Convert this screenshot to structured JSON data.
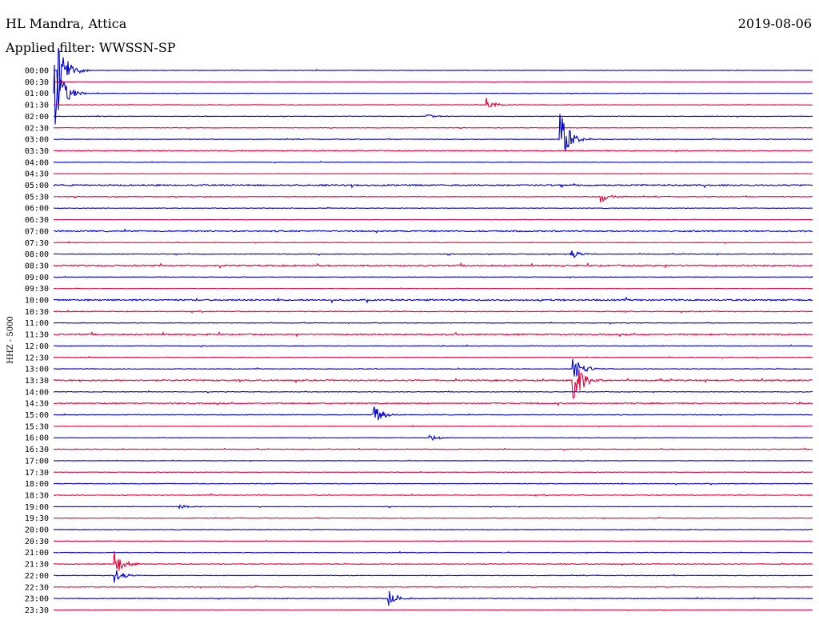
{
  "header": {
    "station": "HL Mandra, Attica",
    "date": "2019-08-06",
    "filter": "Applied filter: WWSSN-SP"
  },
  "chart_data": {
    "type": "line",
    "chart_kind": "helicorder",
    "title": "HL Mandra, Attica",
    "date": "2019-08-06",
    "filter": "Applied filter: WWSSN-SP",
    "ylabel": "HHZ - 5000",
    "row_minutes": 30,
    "grid": false,
    "colors": {
      "odd_trace": "#0000cc",
      "even_trace": "#e8003c"
    },
    "rows": [
      {
        "label": "00:00",
        "noise": 0.3,
        "events": [
          {
            "t": 0.005,
            "amp": 3.6
          }
        ]
      },
      {
        "label": "00:30",
        "noise": 0.25,
        "events": []
      },
      {
        "label": "01:00",
        "noise": 0.3,
        "events": [
          {
            "t": 0.0,
            "amp": 3.5
          }
        ]
      },
      {
        "label": "01:30",
        "noise": 0.3,
        "events": [
          {
            "t": 0.57,
            "amp": 0.6
          }
        ]
      },
      {
        "label": "02:00",
        "noise": 0.3,
        "events": [
          {
            "t": 0.49,
            "amp": 0.3
          }
        ]
      },
      {
        "label": "02:30",
        "noise": 0.25,
        "events": []
      },
      {
        "label": "03:00",
        "noise": 0.35,
        "events": [
          {
            "t": 0.665,
            "amp": 3.3
          }
        ]
      },
      {
        "label": "03:30",
        "noise": 0.6,
        "events": []
      },
      {
        "label": "04:00",
        "noise": 0.3,
        "events": []
      },
      {
        "label": "04:30",
        "noise": 0.25,
        "events": []
      },
      {
        "label": "05:00",
        "noise": 0.8,
        "events": []
      },
      {
        "label": "05:30",
        "noise": 0.4,
        "events": [
          {
            "t": 0.72,
            "amp": 0.6
          }
        ]
      },
      {
        "label": "06:00",
        "noise": 0.3,
        "events": []
      },
      {
        "label": "06:30",
        "noise": 0.3,
        "events": []
      },
      {
        "label": "07:00",
        "noise": 0.8,
        "events": []
      },
      {
        "label": "07:30",
        "noise": 0.35,
        "events": []
      },
      {
        "label": "08:00",
        "noise": 0.4,
        "events": [
          {
            "t": 0.68,
            "amp": 0.5
          }
        ]
      },
      {
        "label": "08:30",
        "noise": 0.8,
        "events": []
      },
      {
        "label": "09:00",
        "noise": 0.3,
        "events": []
      },
      {
        "label": "09:30",
        "noise": 0.25,
        "events": []
      },
      {
        "label": "10:00",
        "noise": 0.9,
        "events": []
      },
      {
        "label": "10:30",
        "noise": 0.5,
        "events": []
      },
      {
        "label": "11:00",
        "noise": 0.35,
        "events": []
      },
      {
        "label": "11:30",
        "noise": 0.8,
        "events": []
      },
      {
        "label": "12:00",
        "noise": 0.4,
        "events": []
      },
      {
        "label": "12:30",
        "noise": 0.35,
        "events": []
      },
      {
        "label": "13:00",
        "noise": 0.4,
        "events": [
          {
            "t": 0.683,
            "amp": 1.5
          }
        ]
      },
      {
        "label": "13:30",
        "noise": 0.8,
        "events": [
          {
            "t": 0.683,
            "amp": 2.8
          }
        ]
      },
      {
        "label": "14:00",
        "noise": 0.35,
        "events": []
      },
      {
        "label": "14:30",
        "noise": 0.7,
        "events": []
      },
      {
        "label": "15:00",
        "noise": 0.4,
        "events": [
          {
            "t": 0.42,
            "amp": 1.1
          }
        ]
      },
      {
        "label": "15:30",
        "noise": 0.3,
        "events": []
      },
      {
        "label": "16:00",
        "noise": 0.3,
        "events": [
          {
            "t": 0.495,
            "amp": 0.35
          }
        ]
      },
      {
        "label": "16:30",
        "noise": 0.4,
        "events": []
      },
      {
        "label": "17:00",
        "noise": 0.25,
        "events": []
      },
      {
        "label": "17:30",
        "noise": 0.25,
        "events": []
      },
      {
        "label": "18:00",
        "noise": 0.4,
        "events": []
      },
      {
        "label": "18:30",
        "noise": 0.45,
        "events": []
      },
      {
        "label": "19:00",
        "noise": 0.3,
        "events": [
          {
            "t": 0.165,
            "amp": 0.3
          }
        ]
      },
      {
        "label": "19:30",
        "noise": 0.35,
        "events": []
      },
      {
        "label": "20:00",
        "noise": 0.4,
        "events": []
      },
      {
        "label": "20:30",
        "noise": 0.25,
        "events": []
      },
      {
        "label": "21:00",
        "noise": 0.35,
        "events": []
      },
      {
        "label": "21:30",
        "noise": 0.45,
        "events": [
          {
            "t": 0.08,
            "amp": 1.2
          }
        ]
      },
      {
        "label": "22:00",
        "noise": 0.35,
        "events": [
          {
            "t": 0.08,
            "amp": 0.7
          }
        ]
      },
      {
        "label": "22:30",
        "noise": 0.45,
        "events": []
      },
      {
        "label": "23:00",
        "noise": 0.45,
        "events": [
          {
            "t": 0.44,
            "amp": 0.8
          }
        ]
      },
      {
        "label": "23:30",
        "noise": 0.3,
        "events": []
      }
    ]
  }
}
